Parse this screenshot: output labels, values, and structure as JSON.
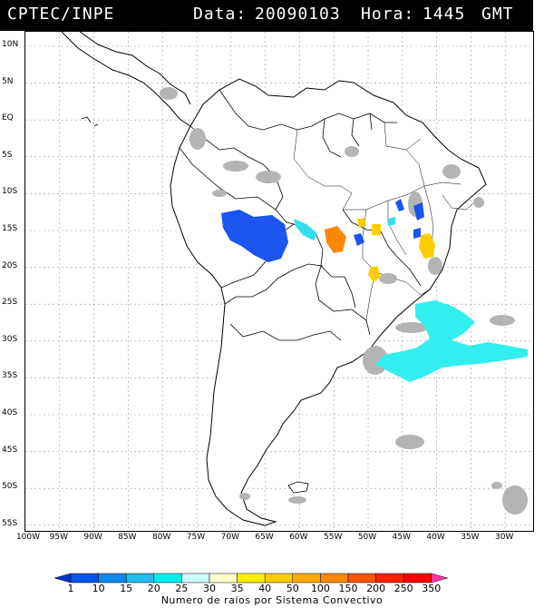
{
  "header": {
    "source": "CPTEC/INPE",
    "date_label": "Data:",
    "date_value": "20090103",
    "time_label": "Hora:",
    "time_value": "1445",
    "time_zone": "GMT"
  },
  "map": {
    "lat_labels": [
      "10N",
      "5N",
      "EQ",
      "5S",
      "10S",
      "15S",
      "20S",
      "25S",
      "30S",
      "35S",
      "40S",
      "45S",
      "50S",
      "55S"
    ],
    "lon_labels": [
      "100W",
      "95W",
      "90W",
      "85W",
      "80W",
      "75W",
      "70W",
      "65W",
      "60W",
      "55W",
      "50W",
      "45W",
      "40W",
      "35W",
      "30W"
    ]
  },
  "legend": {
    "title": "Numero de raios por Sistema Convectivo",
    "values": [
      "1",
      "10",
      "15",
      "20",
      "25",
      "30",
      "35",
      "40",
      "50",
      "100",
      "150",
      "200",
      "250",
      "350"
    ],
    "colors": [
      "#0033cc",
      "#0055ee",
      "#1188ee",
      "#22bbee",
      "#00eeee",
      "#ccffff",
      "#ffffcc",
      "#ffee00",
      "#ffcc00",
      "#ffaa00",
      "#ff8800",
      "#ff5500",
      "#ff2200",
      "#ff0000",
      "#ff33aa"
    ]
  },
  "colors": {
    "grey_clouds": "#b4b4b4",
    "blue_system": "#1a55ee",
    "cyan_system": "#33eeee",
    "orange_system": "#ff8800",
    "yellow_system": "#ffcc00"
  }
}
